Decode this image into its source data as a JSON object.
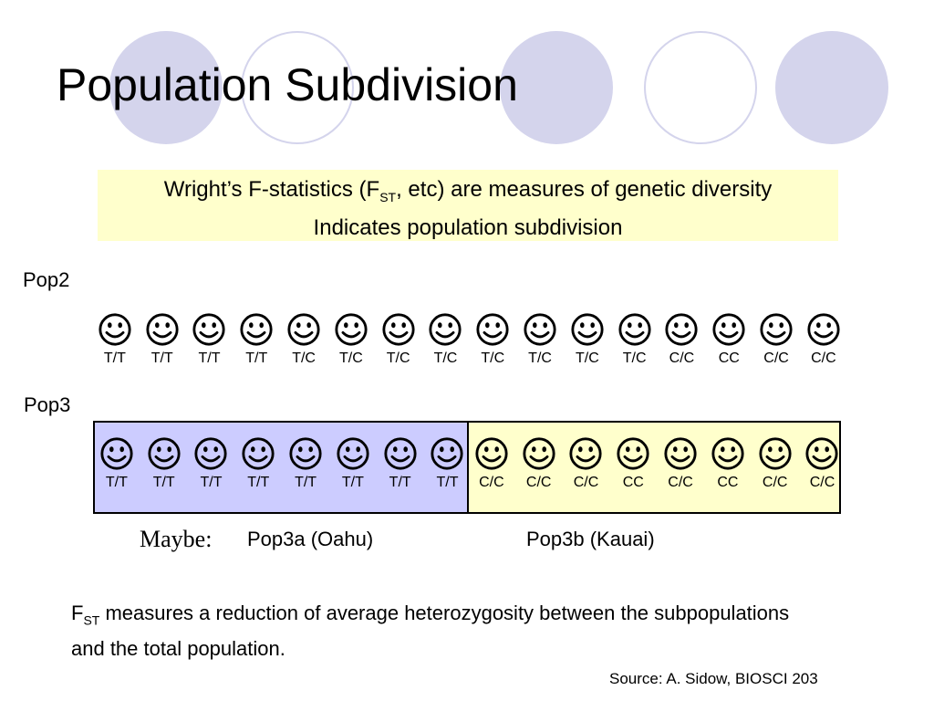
{
  "slide": {
    "title": "Population Subdivision",
    "callout": {
      "line1_prefix": "Wright’s F-statistics (F",
      "line1_sub": "ST",
      "line1_suffix": ", etc) are measures of genetic diversity",
      "line2": "Indicates population subdivision"
    },
    "pop2": {
      "label": "Pop2",
      "genotypes": [
        "T/T",
        "T/T",
        "T/T",
        "T/T",
        "T/C",
        "T/C",
        "T/C",
        "T/C",
        "T/C",
        "T/C",
        "T/C",
        "T/C",
        "C/C",
        "CC",
        "C/C",
        "C/C"
      ]
    },
    "pop3": {
      "label": "Pop3",
      "sub_a_genotypes": [
        "T/T",
        "T/T",
        "T/T",
        "T/T",
        "T/T",
        "T/T",
        "T/T",
        "T/T"
      ],
      "sub_b_genotypes": [
        "C/C",
        "C/C",
        "C/C",
        "CC",
        "C/C",
        "CC",
        "C/C",
        "C/C"
      ]
    },
    "maybe_label": "Maybe:",
    "pop3a_label": "Pop3a (Oahu)",
    "pop3b_label": "Pop3b (Kauai)",
    "footnote": {
      "prefix": "F",
      "sub": "ST",
      "text": " measures a reduction of average heterozygosity between the subpopulations and the total population."
    },
    "source": "Source: A. Sidow, BIOSCI 203",
    "icons": {
      "person": "smiley-face-icon"
    },
    "colors": {
      "decor_circle": "#d4d4ec",
      "callout_bg": "#ffffcc",
      "pop3a_bg": "#ccccff",
      "pop3b_bg": "#ffffcc"
    }
  }
}
